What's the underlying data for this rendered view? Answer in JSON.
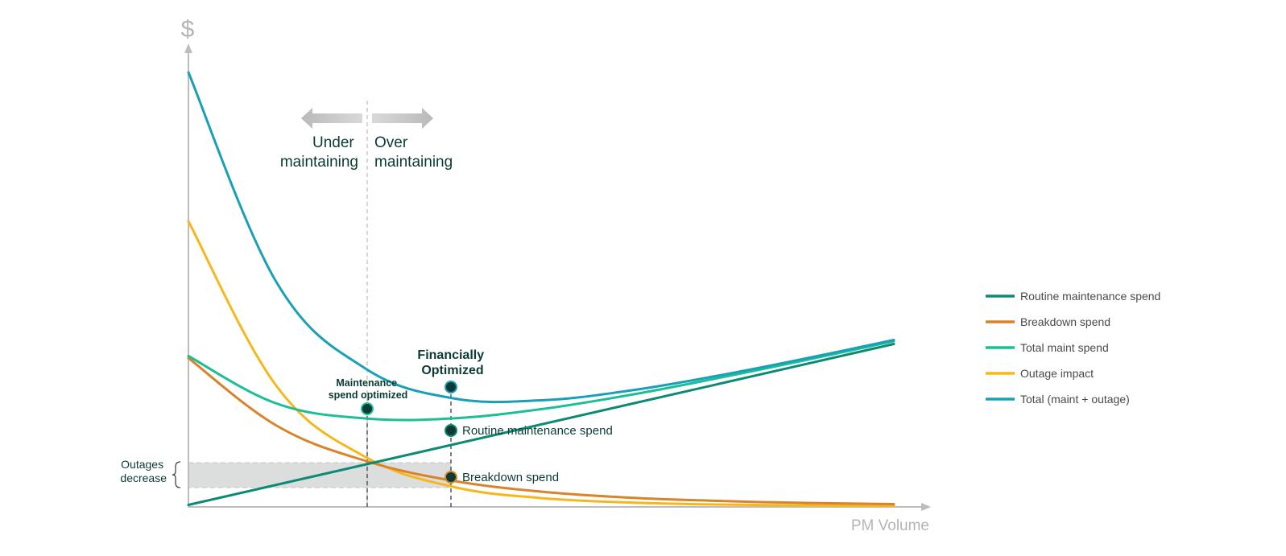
{
  "chart_data": {
    "type": "line",
    "title": "",
    "ylabel": "$",
    "xlabel": "PM Volume",
    "grid": false,
    "legend_position": "right",
    "x": [
      0,
      1,
      2,
      3,
      4,
      5,
      6,
      7,
      8
    ],
    "series": [
      {
        "name": "Routine maintenance spend",
        "color": "#0c8a74",
        "values": [
          0.5,
          5.5,
          10.5,
          15.5,
          20.5,
          25.5,
          30.5,
          35.5,
          40.5
        ]
      },
      {
        "name": "Breakdown spend",
        "color": "#d8842a",
        "values": [
          37.0,
          20.2,
          11.5,
          6.5,
          3.8,
          2.3,
          1.5,
          1.0,
          0.7
        ]
      },
      {
        "name": "Total maint spend",
        "color": "#1bbf96",
        "values": [
          37.5,
          25.7,
          22.0,
          22.0,
          24.3,
          27.8,
          32.0,
          36.5,
          41.2
        ]
      },
      {
        "name": "Outage impact",
        "color": "#f7b71c",
        "values": [
          71.0,
          30.0,
          12.5,
          5.0,
          2.2,
          1.1,
          0.6,
          0.4,
          0.3
        ]
      },
      {
        "name": "Total (maint + outage)",
        "color": "#19a0b8",
        "values": [
          108.0,
          55.8,
          34.5,
          27.0,
          26.5,
          28.9,
          32.6,
          36.9,
          41.5
        ]
      }
    ],
    "markers": [
      {
        "label": "Maintenance spend optimized",
        "x": 2.05,
        "y": 22.0
      },
      {
        "label": "Financially Optimized",
        "x": 3.0,
        "y": 27.2
      },
      {
        "label": "Routine maintenance spend",
        "x": 3.0,
        "y": 17.0
      },
      {
        "label": "Breakdown spend",
        "x": 3.0,
        "y": 6.3
      }
    ],
    "annotations": {
      "left_region": "Under maintaining",
      "right_region": "Over maintaining",
      "bracket_label": "Outages decrease"
    }
  },
  "labels": {
    "y_axis": "$",
    "x_axis": "PM Volume",
    "under_line1": "Under",
    "under_line2": "maintaining",
    "over_line1": "Over",
    "over_line2": "maintaining",
    "fin_line1": "Financially",
    "fin_line2": "Optimized",
    "maint_line1": "Maintenance",
    "maint_line2": "spend optimized",
    "routine_label": "Routine maintenance spend",
    "breakdown_label": "Breakdown spend",
    "outage_line1": "Outages",
    "outage_line2": "decrease"
  },
  "legend": [
    {
      "label": "Routine maintenance spend",
      "color": "#0c8a74"
    },
    {
      "label": "Breakdown spend",
      "color": "#d8842a"
    },
    {
      "label": "Total maint spend",
      "color": "#1bbf96"
    },
    {
      "label": "Outage impact",
      "color": "#f7b71c"
    },
    {
      "label": "Total (maint + outage)",
      "color": "#19a0b8"
    }
  ],
  "colors": {
    "axis": "#bdbdbd",
    "marker_fill": "#0b3b34",
    "band_fill": "#dcdedd"
  }
}
